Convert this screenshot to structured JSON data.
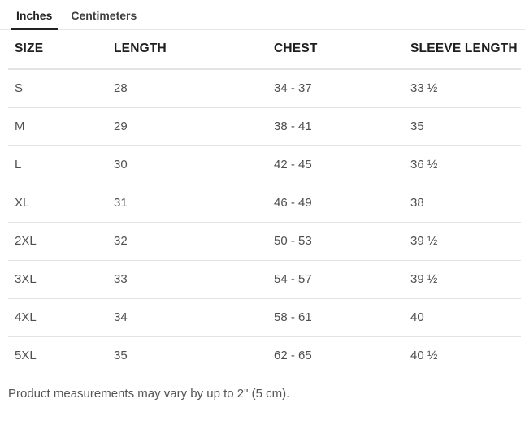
{
  "tabs": {
    "inches": {
      "label": "Inches",
      "active": true
    },
    "centimeters": {
      "label": "Centimeters",
      "active": false
    }
  },
  "table": {
    "headers": [
      "SIZE",
      "LENGTH",
      "CHEST",
      "SLEEVE LENGTH"
    ],
    "rows": [
      {
        "size": "S",
        "length": "28",
        "chest": "34 - 37",
        "sleeve_length": "33 ½"
      },
      {
        "size": "M",
        "length": "29",
        "chest": "38 - 41",
        "sleeve_length": "35"
      },
      {
        "size": "L",
        "length": "30",
        "chest": "42 - 45",
        "sleeve_length": "36 ½"
      },
      {
        "size": "XL",
        "length": "31",
        "chest": "46 - 49",
        "sleeve_length": "38"
      },
      {
        "size": "2XL",
        "length": "32",
        "chest": "50 - 53",
        "sleeve_length": "39 ½"
      },
      {
        "size": "3XL",
        "length": "33",
        "chest": "54 - 57",
        "sleeve_length": "39 ½"
      },
      {
        "size": "4XL",
        "length": "34",
        "chest": "58 - 61",
        "sleeve_length": "40"
      },
      {
        "size": "5XL",
        "length": "35",
        "chest": "62 - 65",
        "sleeve_length": "40 ½"
      }
    ]
  },
  "footer": {
    "note": "Product measurements may vary by up to 2\" (5 cm)."
  },
  "colors": {
    "active_tab_text": "#222222",
    "tab_underline": "#222222",
    "inactive_tab_text": "#3f3f3f",
    "header_text": "#1f1f1f",
    "body_text": "#4f4f4f",
    "divider": "#e3e3e3"
  }
}
